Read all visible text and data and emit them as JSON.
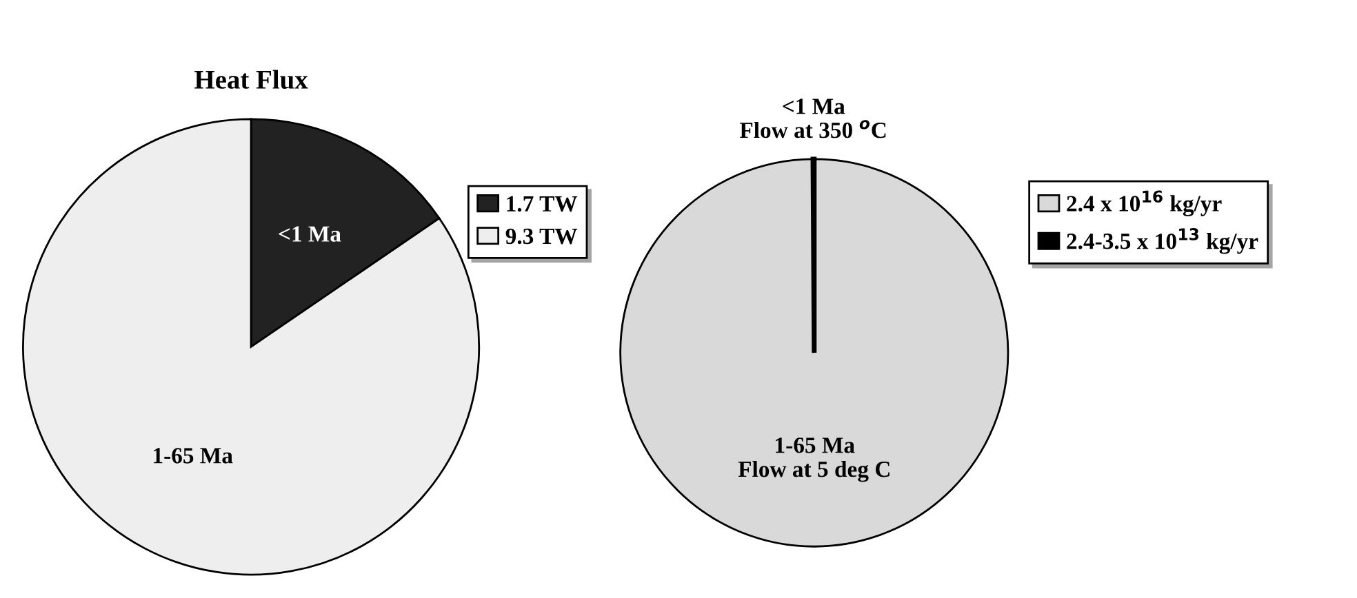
{
  "chart_data": [
    {
      "type": "pie",
      "title": "Heat Flux",
      "categories": [
        "1.7 TW",
        "9.3 TW"
      ],
      "values": [
        1.7,
        9.3
      ],
      "colors": [
        "#222222",
        "#eeeeee"
      ],
      "annotations": [
        "<1 Ma",
        "1-65 Ma"
      ],
      "legend": "right"
    },
    {
      "type": "pie",
      "categories": [
        "2.4 x 10$^{16}$ kg/yr",
        "2.4-3.5 x 10$^{13}$ kg/yr"
      ],
      "values": [
        99.9,
        0.1
      ],
      "colors": [
        "#d9d9d9",
        "#000000"
      ],
      "annotations": [
        "1-65 Ma\nFlow at 5 deg C",
        "<1 Ma\nFlow at 350 $^{o}$C"
      ],
      "legend": "right"
    }
  ]
}
